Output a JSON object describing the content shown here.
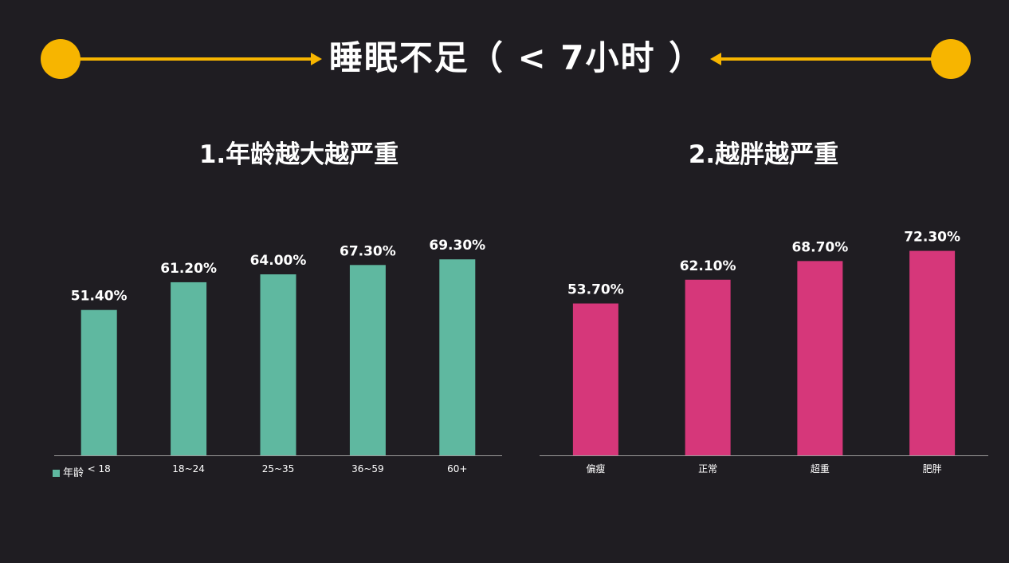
{
  "header": {
    "title": "睡眠不足（ < 7小时 ）",
    "accent_color": "#f7b500"
  },
  "chart_data": [
    {
      "type": "bar",
      "title": "1.年龄越大越严重",
      "categories": [
        "< 18",
        "18~24",
        "25~35",
        "36~59",
        "60+"
      ],
      "series": [
        {
          "name": "年龄",
          "values": [
            51.4,
            61.2,
            64.0,
            67.3,
            69.3
          ],
          "labels": [
            "51.40%",
            "61.20%",
            "64.00%",
            "67.30%",
            "69.30%"
          ],
          "color": "#5fb8a0"
        }
      ],
      "ylim": [
        0,
        75
      ],
      "legend": "bottom-left",
      "grid": false
    },
    {
      "type": "bar",
      "title": "2.越胖越严重",
      "categories": [
        "偏瘦",
        "正常",
        "超重",
        "肥胖"
      ],
      "series": [
        {
          "values": [
            53.7,
            62.1,
            68.7,
            72.3
          ],
          "labels": [
            "53.70%",
            "62.10%",
            "68.70%",
            "72.30%"
          ],
          "color": "#d6377a"
        }
      ],
      "ylim": [
        0,
        75
      ],
      "grid": false
    }
  ]
}
